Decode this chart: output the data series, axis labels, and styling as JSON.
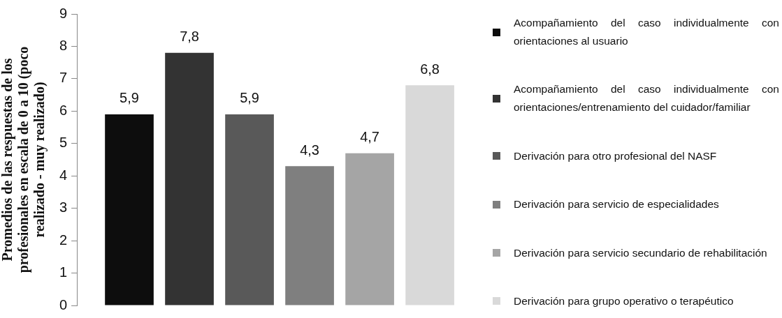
{
  "chart_data": {
    "type": "bar",
    "ylabel": "Promedios de las respuestas de los profesionales en escala de 0 a 10 (poco realizado - muy realizado)",
    "categories": [
      null
    ],
    "ylim": [
      0,
      9
    ],
    "yticks": [
      0,
      1,
      2,
      3,
      4,
      5,
      6,
      7,
      8,
      9
    ],
    "grid": false,
    "legend": "right",
    "series": [
      {
        "name": "Acompañamiento del caso individualmente con orientaciones al usuario",
        "color": "#0d0d0d",
        "values": [
          5.9
        ],
        "value_labels": [
          "5,9"
        ]
      },
      {
        "name": "Acompañamiento del caso individualmente con orientaciones/entrenamiento del cuidador/familiar",
        "color": "#333333",
        "values": [
          7.8
        ],
        "value_labels": [
          "7,8"
        ]
      },
      {
        "name": "Derivación para otro profesional del NASF",
        "color": "#595959",
        "values": [
          5.9
        ],
        "value_labels": [
          "5,9"
        ]
      },
      {
        "name": "Derivación para servicio de especialidades",
        "color": "#7f7f7f",
        "values": [
          4.3
        ],
        "value_labels": [
          "4,3"
        ]
      },
      {
        "name": "Derivación para servicio secundario de rehabilitación",
        "color": "#a5a5a5",
        "values": [
          4.7
        ],
        "value_labels": [
          "4,7"
        ]
      },
      {
        "name": "Derivación para grupo operativo o terapéutico",
        "color": "#d9d9d9",
        "values": [
          6.8
        ],
        "value_labels": [
          "6,8"
        ]
      }
    ]
  }
}
